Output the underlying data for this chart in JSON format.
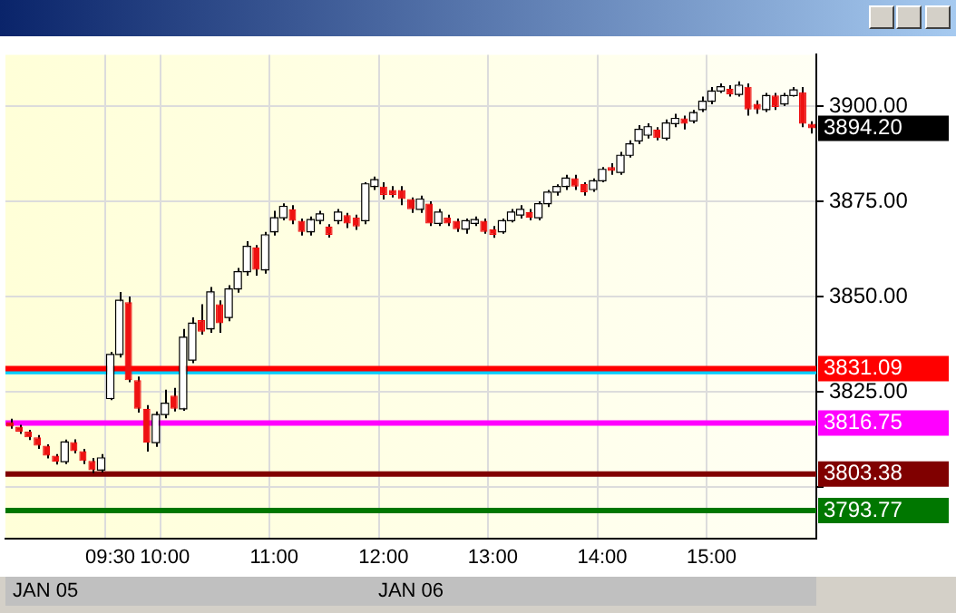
{
  "chart_data": {
    "type": "candlestick",
    "grid": true,
    "legend": false,
    "categories": [
      null,
      null,
      null,
      null,
      null,
      null,
      null,
      null,
      null,
      null,
      null,
      "09:30",
      null,
      null,
      null,
      null,
      null,
      "10:00",
      null,
      null,
      null,
      null,
      null,
      null,
      null,
      null,
      null,
      null,
      null,
      "11:00",
      null,
      null,
      null,
      null,
      null,
      null,
      null,
      null,
      null,
      null,
      null,
      "12:00",
      null,
      null,
      null,
      null,
      null,
      null,
      null,
      null,
      null,
      null,
      null,
      "13:00",
      null,
      null,
      null,
      null,
      null,
      null,
      null,
      null,
      null,
      null,
      null,
      "14:00",
      null,
      null,
      null,
      null,
      null,
      null,
      null,
      null,
      null,
      null,
      null,
      "15:00",
      null,
      null,
      null,
      null,
      null,
      null,
      null,
      null,
      null,
      null,
      null
    ],
    "ohlc": [
      [
        3817.0,
        3817.9,
        3815.3,
        3815.8
      ],
      [
        3815.8,
        3816.3,
        3813.9,
        3814.5
      ],
      [
        3814.5,
        3815.0,
        3812.3,
        3813.0
      ],
      [
        3813.0,
        3813.6,
        3810.0,
        3810.8
      ],
      [
        3810.8,
        3811.2,
        3807.5,
        3808.2
      ],
      [
        3808.2,
        3808.6,
        3805.9,
        3806.6
      ],
      [
        3806.6,
        3812.4,
        3806.0,
        3811.8
      ],
      [
        3811.8,
        3812.5,
        3808.8,
        3809.4
      ],
      [
        3809.4,
        3810.0,
        3806.0,
        3806.8
      ],
      [
        3806.8,
        3807.6,
        3803.6,
        3804.4
      ],
      [
        3804.4,
        3808.6,
        3803.8,
        3807.6
      ],
      [
        3823.2,
        3835.5,
        3822.8,
        3834.8
      ],
      [
        3834.8,
        3851.2,
        3834.0,
        3849.0
      ],
      [
        3848.5,
        3850.0,
        3827.5,
        3828.0
      ],
      [
        3828.0,
        3829.0,
        3819.5,
        3820.5
      ],
      [
        3820.5,
        3821.5,
        3809.3,
        3811.6
      ],
      [
        3811.6,
        3819.8,
        3810.5,
        3819.0
      ],
      [
        3819.0,
        3825.5,
        3818.0,
        3822.0
      ],
      [
        3824.0,
        3826.0,
        3819.8,
        3820.5
      ],
      [
        3820.5,
        3841.5,
        3820.0,
        3839.3
      ],
      [
        3833.3,
        3844.5,
        3832.5,
        3843.0
      ],
      [
        3843.8,
        3848.0,
        3840.0,
        3840.8
      ],
      [
        3841.5,
        3852.5,
        3840.5,
        3851.2
      ],
      [
        3848.0,
        3849.0,
        3840.5,
        3843.0
      ],
      [
        3844.5,
        3853.0,
        3843.5,
        3852.0
      ],
      [
        3852.0,
        3857.5,
        3851.0,
        3856.5
      ],
      [
        3856.5,
        3864.5,
        3855.5,
        3863.2
      ],
      [
        3862.9,
        3863.5,
        3855.5,
        3857.0
      ],
      [
        3857.0,
        3867.0,
        3856.0,
        3866.2
      ],
      [
        3867.0,
        3872.5,
        3866.0,
        3870.7
      ],
      [
        3870.7,
        3874.5,
        3870.0,
        3873.7
      ],
      [
        3872.9,
        3874.0,
        3869.0,
        3869.9
      ],
      [
        3869.9,
        3870.5,
        3866.0,
        3867.0
      ],
      [
        3867.0,
        3871.0,
        3866.0,
        3870.2
      ],
      [
        3870.0,
        3872.5,
        3869.0,
        3871.7
      ],
      [
        3868.4,
        3869.0,
        3865.5,
        3866.2
      ],
      [
        3869.9,
        3873.0,
        3869.0,
        3872.2
      ],
      [
        3871.4,
        3872.0,
        3868.0,
        3869.2
      ],
      [
        3870.7,
        3871.5,
        3867.5,
        3868.4
      ],
      [
        3869.9,
        3880.0,
        3869.0,
        3879.6
      ],
      [
        3878.9,
        3881.5,
        3878.0,
        3880.7
      ],
      [
        3878.9,
        3880.0,
        3875.5,
        3876.7
      ],
      [
        3878.0,
        3879.0,
        3876.0,
        3876.7
      ],
      [
        3878.0,
        3879.0,
        3874.0,
        3875.6
      ],
      [
        3875.6,
        3876.0,
        3872.0,
        3872.9
      ],
      [
        3872.9,
        3876.5,
        3872.0,
        3875.6
      ],
      [
        3874.4,
        3875.0,
        3868.5,
        3869.2
      ],
      [
        3869.2,
        3873.0,
        3868.5,
        3872.2
      ],
      [
        3870.7,
        3871.5,
        3868.5,
        3869.2
      ],
      [
        3869.9,
        3870.5,
        3867.0,
        3867.7
      ],
      [
        3867.7,
        3870.5,
        3866.5,
        3869.9
      ],
      [
        3869.2,
        3871.0,
        3868.5,
        3870.2
      ],
      [
        3869.9,
        3870.5,
        3866.5,
        3867.0
      ],
      [
        3867.7,
        3868.5,
        3865.4,
        3866.2
      ],
      [
        3867.0,
        3870.5,
        3866.5,
        3869.9
      ],
      [
        3869.9,
        3873.0,
        3869.5,
        3872.2
      ],
      [
        3871.4,
        3874.0,
        3870.5,
        3872.9
      ],
      [
        3872.2,
        3873.0,
        3870.0,
        3870.7
      ],
      [
        3870.7,
        3875.0,
        3870.0,
        3874.4
      ],
      [
        3874.4,
        3878.0,
        3873.5,
        3877.4
      ],
      [
        3877.4,
        3879.5,
        3876.5,
        3878.9
      ],
      [
        3878.9,
        3882.0,
        3878.0,
        3881.1
      ],
      [
        3881.1,
        3882.0,
        3878.0,
        3878.9
      ],
      [
        3879.6,
        3880.0,
        3876.5,
        3877.4
      ],
      [
        3878.1,
        3881.0,
        3877.5,
        3880.4
      ],
      [
        3880.4,
        3884.0,
        3880.0,
        3883.4
      ],
      [
        3884.0,
        3885.0,
        3882.0,
        3883.0
      ],
      [
        3882.6,
        3888.0,
        3882.0,
        3887.1
      ],
      [
        3887.1,
        3891.0,
        3886.5,
        3890.1
      ],
      [
        3890.9,
        3895.0,
        3890.0,
        3893.9
      ],
      [
        3892.4,
        3895.5,
        3891.5,
        3894.6
      ],
      [
        3893.9,
        3894.5,
        3891.0,
        3891.6
      ],
      [
        3891.6,
        3896.5,
        3891.0,
        3895.6
      ],
      [
        3895.4,
        3898.0,
        3894.5,
        3896.8
      ],
      [
        3896.8,
        3897.5,
        3893.9,
        3895.4
      ],
      [
        3896.1,
        3899.0,
        3895.5,
        3898.3
      ],
      [
        3899.1,
        3902.5,
        3898.5,
        3901.3
      ],
      [
        3901.3,
        3905.0,
        3900.5,
        3904.0
      ],
      [
        3904.0,
        3906.0,
        3903.5,
        3905.1
      ],
      [
        3904.6,
        3905.5,
        3902.5,
        3903.1
      ],
      [
        3903.1,
        3906.5,
        3902.5,
        3905.5
      ],
      [
        3905.1,
        3906.0,
        3897.5,
        3899.1
      ],
      [
        3900.6,
        3901.5,
        3898.0,
        3899.1
      ],
      [
        3899.1,
        3903.5,
        3898.5,
        3902.8
      ],
      [
        3902.8,
        3903.5,
        3899.0,
        3899.8
      ],
      [
        3900.6,
        3903.5,
        3900.0,
        3902.8
      ],
      [
        3902.8,
        3905.0,
        3902.5,
        3904.3
      ],
      [
        3903.6,
        3905.0,
        3894.5,
        3895.4
      ],
      [
        3895.4,
        3896.0,
        3892.8,
        3894.2
      ]
    ],
    "colors": [
      "#ee1111",
      "#ee1111",
      "#ee1111",
      "#ee1111",
      "#ee1111",
      "#ee1111",
      "#ffffff",
      "#ee1111",
      "#ee1111",
      "#ee1111",
      "#ffffff",
      "#ffffff",
      "#ffffff",
      "#ee1111",
      "#ee1111",
      "#ee1111",
      "#ffffff",
      "#ffffff",
      "#ee1111",
      "#ffffff",
      "#ffffff",
      "#ee1111",
      "#ffffff",
      "#ee1111",
      "#ffffff",
      "#ffffff",
      "#ffffff",
      "#ee1111",
      "#ffffff",
      "#ffffff",
      "#ffffff",
      "#ee1111",
      "#ee1111",
      "#ffffff",
      "#ffffff",
      "#ee1111",
      "#ffffff",
      "#ee1111",
      "#ee1111",
      "#ffffff",
      "#ffffff",
      "#ee1111",
      "#ee1111",
      "#ee1111",
      "#ee1111",
      "#ffffff",
      "#ee1111",
      "#ffffff",
      "#ee1111",
      "#ee1111",
      "#ffffff",
      "#ffffff",
      "#ee1111",
      "#ee1111",
      "#ffffff",
      "#ffffff",
      "#ffffff",
      "#ee1111",
      "#ffffff",
      "#ffffff",
      "#ffffff",
      "#ffffff",
      "#ee1111",
      "#ee1111",
      "#ffffff",
      "#ffffff",
      "#ee1111",
      "#ffffff",
      "#ffffff",
      "#ffffff",
      "#ffffff",
      "#ee1111",
      "#ffffff",
      "#ffffff",
      "#ee1111",
      "#ffffff",
      "#ffffff",
      "#ffffff",
      "#ffffff",
      "#ee1111",
      "#ffffff",
      "#ee1111",
      "#ee1111",
      "#ffffff",
      "#ee1111",
      "#ffffff",
      "#ffffff",
      "#ee1111",
      "#ee1111"
    ],
    "ylim": [
      3786.5,
      3913.5
    ],
    "yticks": [
      {
        "value": 3800,
        "label": null
      },
      {
        "value": 3825,
        "label": "3825.00"
      },
      {
        "value": 3850,
        "label": "3850.00"
      },
      {
        "value": 3875,
        "label": "3875.00"
      },
      {
        "value": 3900,
        "label": "3900.00"
      }
    ],
    "ref_lines": [
      {
        "axis": "y",
        "value": 3830.3,
        "label": null,
        "color": "#00ccff"
      },
      {
        "axis": "y",
        "value": 3831.09,
        "label": "3831.09",
        "color": "#ff0000"
      },
      {
        "axis": "y",
        "value": 3816.75,
        "label": "3816.75",
        "color": "#ff00ff"
      },
      {
        "axis": "y",
        "value": 3803.38,
        "label": "3803.38",
        "color": "#800000"
      },
      {
        "axis": "y",
        "value": 3793.77,
        "label": "3793.77",
        "color": "#007700"
      }
    ],
    "annotations": [
      "3894.20",
      "JAN 05",
      "JAN 06"
    ]
  }
}
